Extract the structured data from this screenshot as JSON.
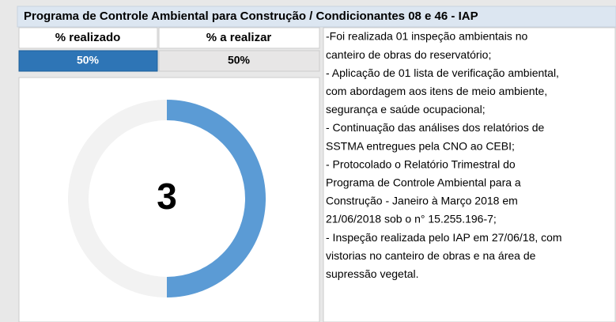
{
  "title": "Programa de Controle Ambiental para Construção / Condicionantes 08 e 46 - IAP",
  "table": {
    "headers": [
      "% realizado",
      "% a realizar"
    ],
    "values": [
      50,
      50
    ],
    "value_labels": [
      "50%",
      "50%"
    ]
  },
  "donut": {
    "center_label": "3",
    "colors": [
      "#5b9bd5",
      "#f2f2f2"
    ]
  },
  "notes": [
    "-Foi realizada 01 inspeção ambientais no",
    "canteiro de obras do reservatório;",
    "- Aplicação de 01 lista de verificação ambiental,",
    "com abordagem aos itens de meio ambiente,",
    "segurança e saúde ocupacional;",
    "- Continuação das análises dos relatórios de",
    "SSTMA entregues pela CNO ao CEBI;",
    "- Protocolado o Relatório Trimestral do",
    "Programa de Controle Ambiental para a",
    "Construção - Janeiro à Março 2018 em",
    "21/06/2018 sob o n° 15.255.196-7;",
    "- Inspeção realizada pelo IAP em 27/06/18, com",
    "vistorias no canteiro de obras e na área de",
    "supressão vegetal."
  ]
}
